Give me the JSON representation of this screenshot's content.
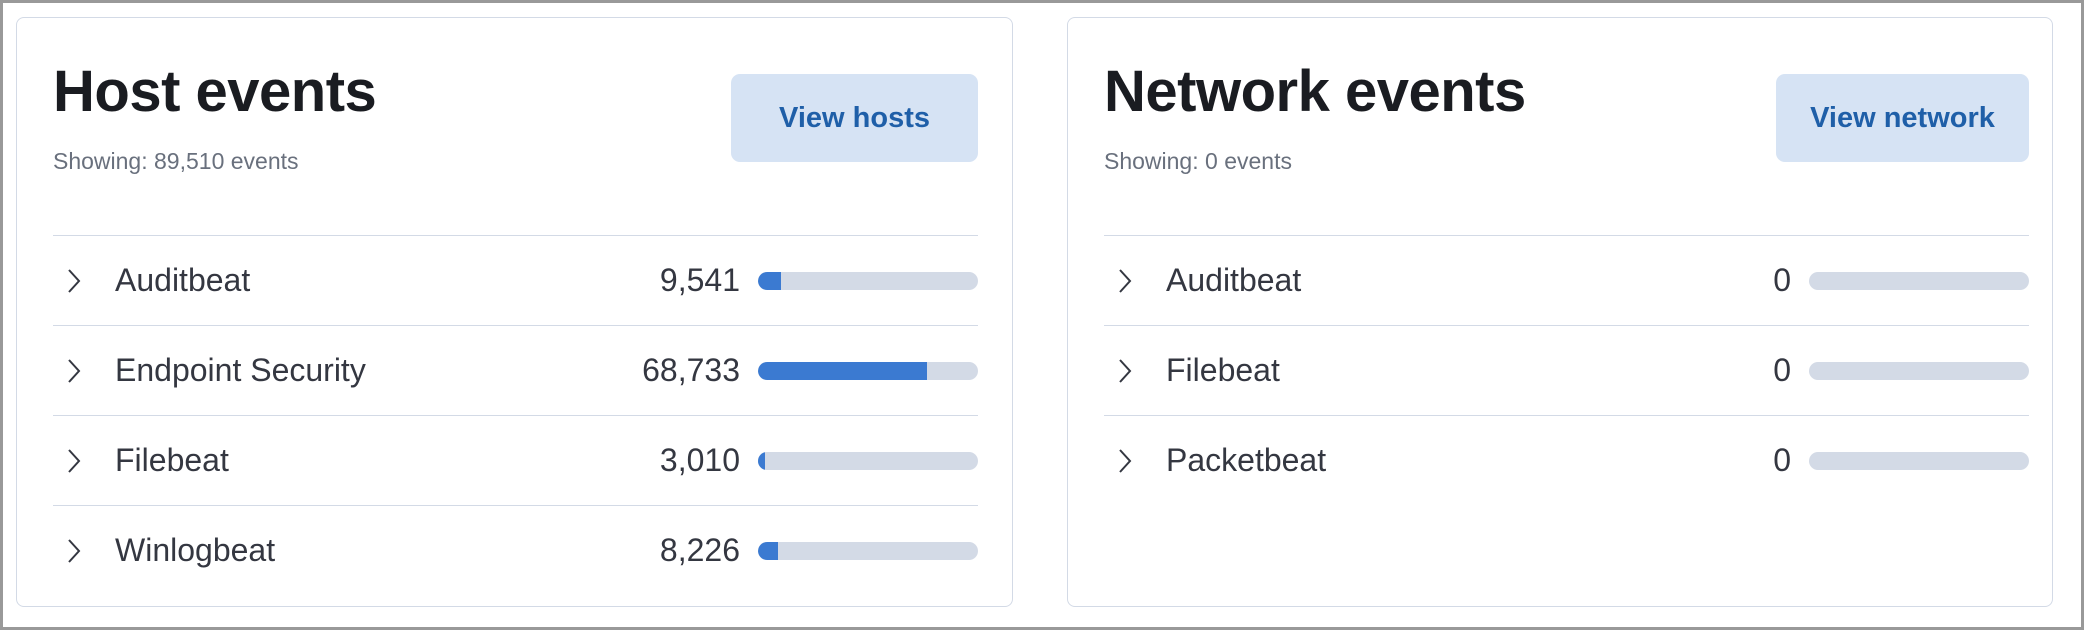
{
  "host": {
    "title": "Host events",
    "subtitle": "Showing: 89,510 events",
    "button": "View hosts",
    "total": 89510,
    "items": [
      {
        "label": "Auditbeat",
        "count": "9,541",
        "value": 9541
      },
      {
        "label": "Endpoint Security",
        "count": "68,733",
        "value": 68733
      },
      {
        "label": "Filebeat",
        "count": "3,010",
        "value": 3010
      },
      {
        "label": "Winlogbeat",
        "count": "8,226",
        "value": 8226
      }
    ]
  },
  "network": {
    "title": "Network events",
    "subtitle": "Showing: 0 events",
    "button": "View network",
    "total": 0,
    "items": [
      {
        "label": "Auditbeat",
        "count": "0",
        "value": 0
      },
      {
        "label": "Filebeat",
        "count": "0",
        "value": 0
      },
      {
        "label": "Packetbeat",
        "count": "0",
        "value": 0
      }
    ]
  },
  "colors": {
    "bar_fill": "#3b7ad1",
    "bar_track": "#d3dae6",
    "button_bg": "#d6e3f4",
    "button_text": "#1f5fa8"
  }
}
